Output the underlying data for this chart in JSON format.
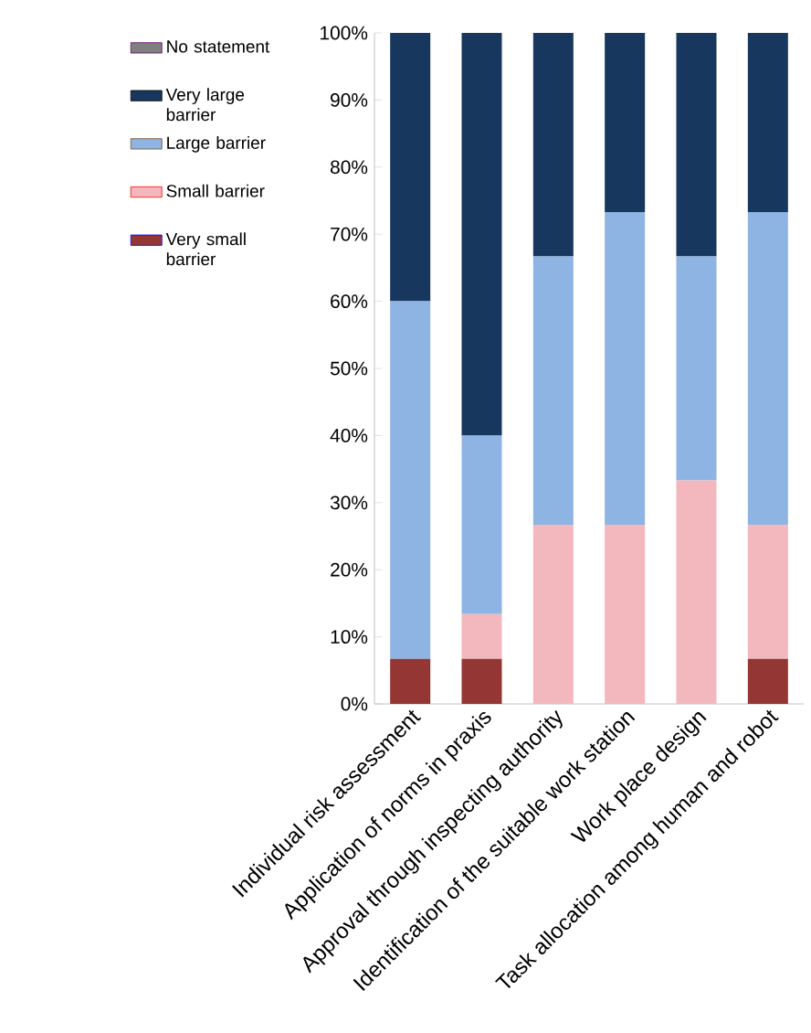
{
  "chart_data": {
    "type": "bar",
    "stacked": true,
    "categories": [
      "Individual risk assessment",
      "Application of norms in praxis",
      "Approval through inspecting authority",
      "Identification of the suitable work station",
      "Work place design",
      "Task allocation among human and robot"
    ],
    "series": [
      {
        "name": "Very small barrier",
        "color": "#943634",
        "values": [
          6.7,
          6.7,
          0,
          0,
          0,
          6.7
        ]
      },
      {
        "name": "Small barrier",
        "color": "#f2b8bd",
        "values": [
          0,
          6.7,
          26.7,
          26.7,
          33.3,
          20
        ]
      },
      {
        "name": "Large barrier",
        "color": "#8db4e2",
        "values": [
          53.3,
          26.6,
          40,
          46.6,
          33.4,
          46.6
        ]
      },
      {
        "name": "Very large barrier",
        "color": "#17375e",
        "values": [
          40,
          60,
          33.3,
          26.7,
          33.3,
          26.7
        ]
      },
      {
        "name": "No statement",
        "color": "#7f7f7f",
        "values": [
          0,
          0,
          0,
          0,
          0,
          0
        ]
      }
    ],
    "ylim": [
      0,
      100
    ],
    "yticks": [
      {
        "value": 0,
        "label": "0%"
      },
      {
        "value": 10,
        "label": "10%"
      },
      {
        "value": 20,
        "label": "20%"
      },
      {
        "value": 30,
        "label": "30%"
      },
      {
        "value": 40,
        "label": "40%"
      },
      {
        "value": 50,
        "label": "50%"
      },
      {
        "value": 60,
        "label": "60%"
      },
      {
        "value": 70,
        "label": "70%"
      },
      {
        "value": 80,
        "label": "80%"
      },
      {
        "value": 90,
        "label": "90%"
      },
      {
        "value": 100,
        "label": "100%"
      }
    ],
    "grid": false,
    "legend": "left"
  }
}
